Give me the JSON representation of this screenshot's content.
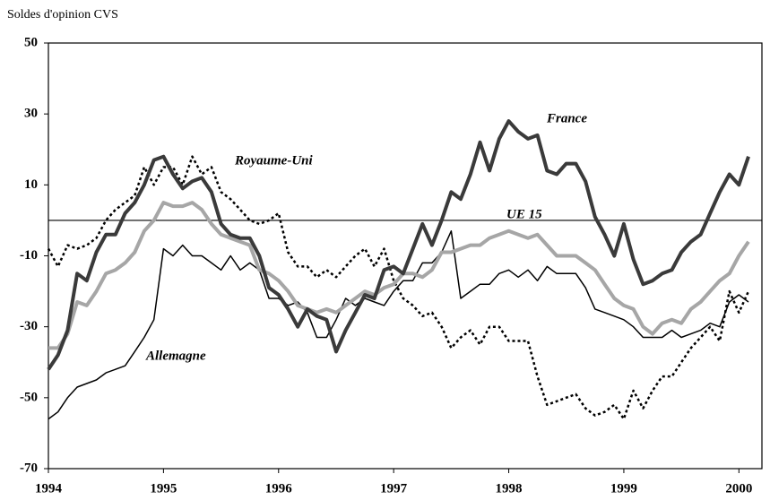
{
  "chart_data": {
    "type": "line",
    "title": "Soldes d'opinion CVS",
    "x": [
      1994,
      1994.083,
      1994.167,
      1994.25,
      1994.333,
      1994.417,
      1994.5,
      1994.583,
      1994.667,
      1994.75,
      1994.833,
      1994.917,
      1995,
      1995.083,
      1995.167,
      1995.25,
      1995.333,
      1995.417,
      1995.5,
      1995.583,
      1995.667,
      1995.75,
      1995.833,
      1995.917,
      1996,
      1996.083,
      1996.167,
      1996.25,
      1996.333,
      1996.417,
      1996.5,
      1996.583,
      1996.667,
      1996.75,
      1996.833,
      1996.917,
      1997,
      1997.083,
      1997.167,
      1997.25,
      1997.333,
      1997.417,
      1997.5,
      1997.583,
      1997.667,
      1997.75,
      1997.833,
      1997.917,
      1998,
      1998.083,
      1998.167,
      1998.25,
      1998.333,
      1998.417,
      1998.5,
      1998.583,
      1998.667,
      1998.75,
      1998.833,
      1998.917,
      1999,
      1999.083,
      1999.167,
      1999.25,
      1999.333,
      1999.417,
      1999.5,
      1999.583,
      1999.667,
      1999.75,
      1999.833,
      1999.917,
      2000,
      2000.083
    ],
    "series": [
      {
        "name": "France",
        "color": "#3a3a3a",
        "values": [
          -42,
          -38,
          -31,
          -15,
          -17,
          -9,
          -4,
          -4,
          2,
          5,
          10,
          17,
          18,
          13,
          9,
          11,
          12,
          8,
          -1,
          -4,
          -5,
          -5,
          -10,
          -19,
          -21,
          -25,
          -30,
          -25,
          -27,
          -28,
          -37,
          -31,
          -26,
          -21,
          -22,
          -14,
          -13,
          -15,
          -8,
          -1,
          -7,
          0,
          8,
          6,
          13,
          22,
          14,
          23,
          28,
          25,
          23,
          24,
          14,
          13,
          16,
          16,
          11,
          1,
          -4,
          -10,
          -1,
          -11,
          -18,
          -17,
          -15,
          -14,
          -9,
          -6,
          -4,
          2,
          8,
          13,
          10,
          18
        ]
      },
      {
        "name": "UE 15",
        "color": "#a6a6a6",
        "values": [
          -36,
          -36,
          -32,
          -23,
          -24,
          -20,
          -15,
          -14,
          -12,
          -9,
          -3,
          0,
          5,
          4,
          4,
          5,
          3,
          -1,
          -4,
          -5,
          -6,
          -7,
          -14,
          -15,
          -17,
          -20,
          -24,
          -25,
          -26,
          -25,
          -26,
          -24,
          -22,
          -20,
          -21,
          -19,
          -18,
          -15,
          -15,
          -16,
          -14,
          -9,
          -9,
          -8,
          -7,
          -7,
          -5,
          -4,
          -3,
          -4,
          -5,
          -4,
          -7,
          -10,
          -10,
          -10,
          -12,
          -14,
          -18,
          -22,
          -24,
          -25,
          -30,
          -32,
          -29,
          -28,
          -29,
          -25,
          -23,
          -20,
          -17,
          -15,
          -10,
          -6
        ]
      },
      {
        "name": "Royaume-Uni",
        "color": "#000000",
        "values": [
          -8,
          -13,
          -7,
          -8,
          -7,
          -5,
          0,
          3,
          5,
          7,
          15,
          10,
          15,
          15,
          10,
          18,
          13,
          15,
          8,
          6,
          3,
          0,
          -1,
          0,
          2,
          -9,
          -13,
          -13,
          -16,
          -14,
          -16,
          -13,
          -10,
          -8,
          -13,
          -8,
          -17,
          -22,
          -24,
          -27,
          -26,
          -30,
          -36,
          -33,
          -31,
          -35,
          -30,
          -30,
          -34,
          -34,
          -34,
          -44,
          -52,
          -51,
          -50,
          -49,
          -53,
          -55,
          -54,
          -52,
          -56,
          -48,
          -53,
          -48,
          -44,
          -44,
          -40,
          -36,
          -33,
          -30,
          -34,
          -20,
          -26,
          -20
        ]
      },
      {
        "name": "Allemagne",
        "color": "#000000",
        "values": [
          -56,
          -54,
          -50,
          -47,
          -46,
          -45,
          -43,
          -42,
          -41,
          -37,
          -33,
          -28,
          -8,
          -10,
          -7,
          -10,
          -10,
          -12,
          -14,
          -10,
          -14,
          -12,
          -14,
          -22,
          -22,
          -24,
          -23,
          -26,
          -33,
          -33,
          -28,
          -22,
          -24,
          -22,
          -23,
          -24,
          -20,
          -17,
          -17,
          -12,
          -12,
          -9,
          -3,
          -22,
          -20,
          -18,
          -18,
          -15,
          -14,
          -16,
          -14,
          -17,
          -13,
          -15,
          -15,
          -15,
          -19,
          -25,
          -26,
          -27,
          -28,
          -30,
          -33,
          -33,
          -33,
          -31,
          -33,
          -32,
          -31,
          -29,
          -30,
          -23,
          -21,
          -23
        ]
      }
    ],
    "reference_line": 0,
    "xlim": [
      1994,
      2000.2
    ],
    "xticks": [
      1994,
      1995,
      1996,
      1997,
      1998,
      1999,
      2000
    ],
    "ylim": [
      -70,
      50
    ],
    "yticks": [
      -70,
      -50,
      -30,
      -10,
      10,
      30,
      50
    ]
  }
}
